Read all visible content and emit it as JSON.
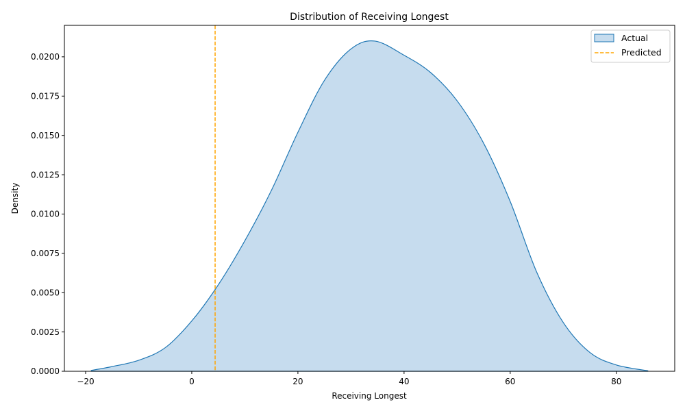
{
  "chart_data": {
    "type": "area",
    "title": "Distribution of Receiving Longest",
    "xlabel": "Receiving Longest",
    "ylabel": "Density",
    "xlim": [
      -24,
      91
    ],
    "ylim": [
      0,
      0.022
    ],
    "x_ticks": [
      -20,
      0,
      20,
      40,
      60,
      80
    ],
    "x_tick_labels": [
      "−20",
      "0",
      "20",
      "40",
      "60",
      "80"
    ],
    "y_ticks": [
      0,
      0.0025,
      0.005,
      0.0075,
      0.01,
      0.0125,
      0.015,
      0.0175,
      0.02
    ],
    "y_tick_labels": [
      "0.0000",
      "0.0025",
      "0.0050",
      "0.0075",
      "0.0100",
      "0.0125",
      "0.0150",
      "0.0175",
      "0.0200"
    ],
    "grid": false,
    "legend_placement": "top-right",
    "series": [
      {
        "name": "Actual",
        "kind": "kde-area",
        "color": "#1f77b4",
        "fill": "#c6dcee",
        "x": [
          -19,
          -15,
          -10,
          -5,
          0,
          5,
          10,
          15,
          20,
          25,
          30,
          34.5,
          40,
          45,
          50,
          55,
          60,
          65,
          70,
          75,
          80,
          86
        ],
        "y": [
          5e-05,
          0.0003,
          0.0007,
          0.0015,
          0.0032,
          0.0055,
          0.0083,
          0.0115,
          0.0152,
          0.0185,
          0.0205,
          0.021,
          0.0201,
          0.019,
          0.0172,
          0.0145,
          0.0108,
          0.0063,
          0.0031,
          0.0012,
          0.0004,
          3e-05
        ]
      },
      {
        "name": "Predicted",
        "kind": "vline",
        "color": "#ffa500",
        "x": 4.4
      }
    ]
  }
}
